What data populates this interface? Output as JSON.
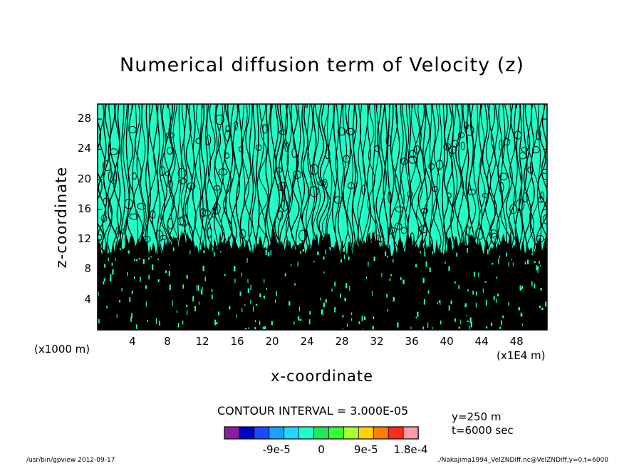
{
  "chart_data": {
    "type": "contour",
    "title": "Numerical diffusion term of Velocity (z)",
    "xlabel": "x-coordinate",
    "ylabel": "z-coordinate",
    "x_unit": "(x1E4 m)",
    "y_unit": "(x1000 m)",
    "xlim": [
      0,
      51.5
    ],
    "ylim": [
      0,
      30
    ],
    "x_ticks": [
      4,
      8,
      12,
      16,
      20,
      24,
      28,
      32,
      36,
      40,
      44,
      48
    ],
    "y_ticks": [
      4,
      8,
      12,
      16,
      20,
      24,
      28
    ],
    "x_tick_labels": [
      "4",
      "8",
      "12",
      "16",
      "20",
      "24",
      "28",
      "32",
      "36",
      "40",
      "44",
      "48"
    ],
    "y_tick_labels": [
      "4",
      "8",
      "12",
      "16",
      "20",
      "24",
      "28"
    ],
    "contour_interval_label": "CONTOUR INTERVAL = 3.000E-05",
    "contour_interval": 3e-05,
    "colorbar": {
      "colors": [
        "#8b1fa0",
        "#0000c8",
        "#1c4bff",
        "#1aa2ff",
        "#1fd6ff",
        "#20ffc8",
        "#1ee85a",
        "#33ff33",
        "#a8ff2c",
        "#ffd400",
        "#ff7f00",
        "#ff2a18",
        "#ff9aa8"
      ],
      "labels": [
        "-9e-5",
        "0",
        "9e-5",
        "1.8e-4"
      ],
      "label_positions": [
        -9e-05,
        0,
        9e-05,
        0.00018
      ],
      "range": [
        -0.000195,
        0.000195
      ]
    },
    "annotations": [
      "y=250 m",
      "t=6000 sec"
    ]
  },
  "footer": {
    "left": "/usr/bin/gpview   2012-09-17",
    "right": "./Nakajima1994_VelZNDiff.nc@VelZNDiff,y=0,t=6000"
  }
}
